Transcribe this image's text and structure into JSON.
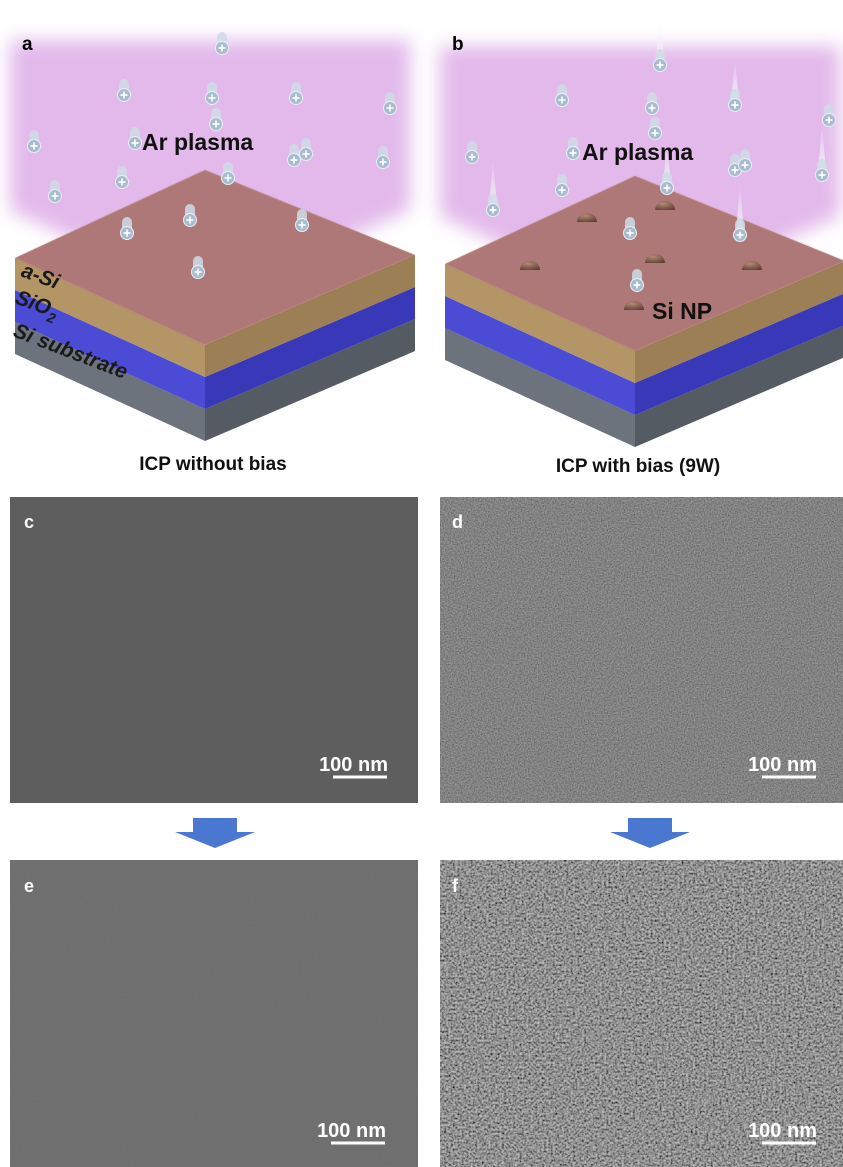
{
  "panels": [
    {
      "label": "a",
      "plasma_label": "Ar plasma",
      "layers": [
        "a-Si",
        {
          "text": "SiO",
          "subscript": "2"
        },
        "Si substrate"
      ],
      "caption": "ICP without bias"
    },
    {
      "label": "b",
      "plasma_label": "Ar plasma",
      "particle_label": "Si NP",
      "caption": "ICP with bias (9W)"
    },
    {
      "label": "c",
      "scale_bar": "100 nm"
    },
    {
      "label": "d",
      "scale_bar": "100 nm"
    },
    {
      "label": "e",
      "scale_bar": "100 nm"
    },
    {
      "label": "f",
      "scale_bar": "100 nm"
    }
  ]
}
